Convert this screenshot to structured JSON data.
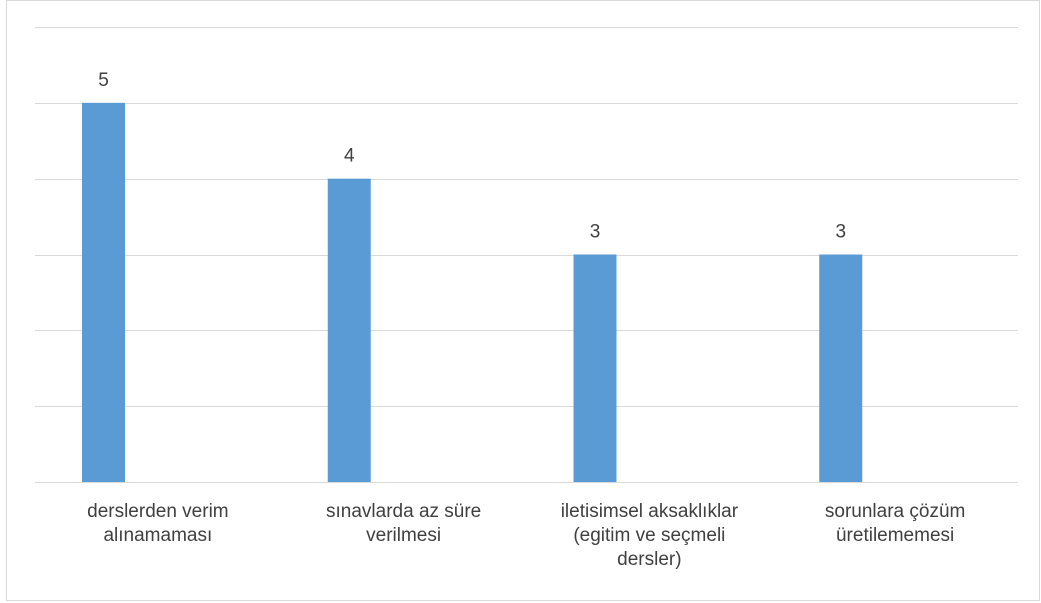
{
  "chart_data": {
    "type": "bar",
    "categories": [
      "derslerden verim\nalınamaması",
      "sınavlarda az süre\nverilmesi",
      "iletisimsel aksaklıklar\n(egitim ve seçmeli\ndersler)",
      "sorunlara çözüm\nüretilememesi"
    ],
    "values": [
      5,
      4,
      3,
      3
    ],
    "data_labels": [
      "5",
      "4",
      "3",
      "3"
    ],
    "title": "",
    "xlabel": "",
    "ylabel": "",
    "ylim": [
      0,
      6
    ],
    "grid": true,
    "bar_color": "#5b9bd5",
    "grid_color": "#d9d9d9",
    "label_color": "#404040"
  }
}
